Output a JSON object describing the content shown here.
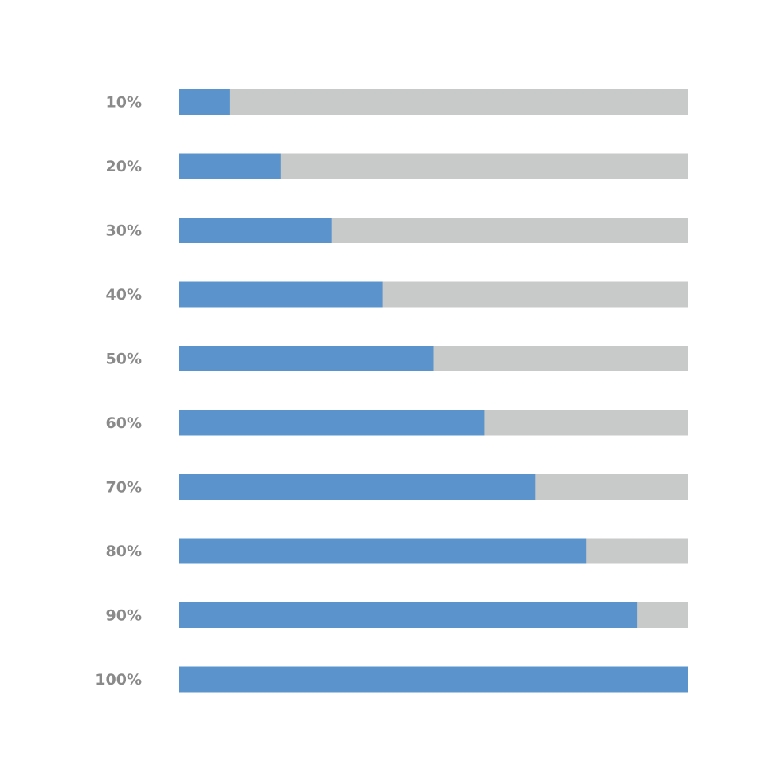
{
  "chart_data": {
    "type": "bar",
    "horizontal": true,
    "values": [
      10,
      20,
      30,
      40,
      50,
      60,
      70,
      80,
      90,
      100
    ],
    "value_labels": [
      "10%",
      "20%",
      "30%",
      "40%",
      "50%",
      "60%",
      "70%",
      "80%",
      "90%",
      "100%"
    ],
    "color": "#5b94cd",
    "track_color": "#c8c9c9",
    "xlim": [
      0,
      100
    ]
  }
}
